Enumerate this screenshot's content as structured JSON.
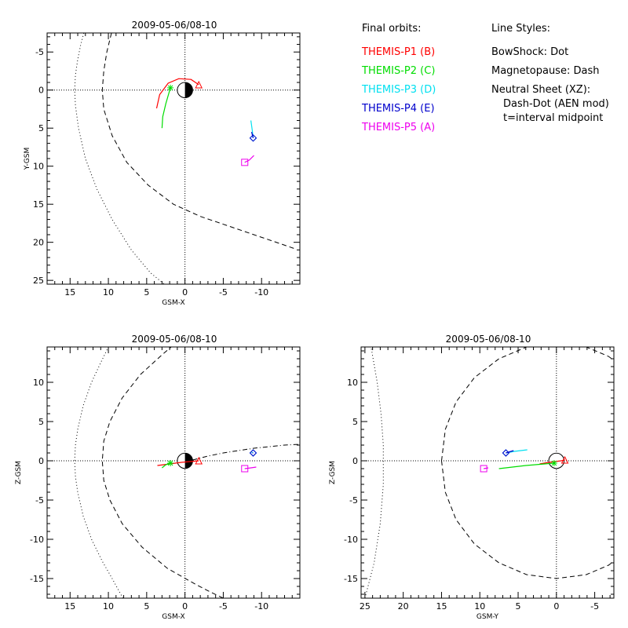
{
  "legend": {
    "orbits_title": "Final orbits:",
    "orbits": [
      {
        "label": "THEMIS-P1 (B)",
        "color": "#ff0000"
      },
      {
        "label": "THEMIS-P2 (C)",
        "color": "#00dd00"
      },
      {
        "label": "THEMIS-P3 (D)",
        "color": "#00e0f0"
      },
      {
        "label": "THEMIS-P4 (E)",
        "color": "#0000cc"
      },
      {
        "label": "THEMIS-P5 (A)",
        "color": "#ee00ee"
      }
    ],
    "styles_title": "Line Styles:",
    "styles": [
      "BowShock: Dot",
      "Magnetopause: Dash",
      "Neutral Sheet (XZ):",
      "Dash-Dot (AEN mod)",
      "t=interval midpoint"
    ]
  },
  "chart_data": [
    {
      "type": "line",
      "title": "2009-05-06/08-10",
      "xlabel": "GSM-X",
      "ylabel": "Y-GSM",
      "xlim": [
        18,
        -15
      ],
      "ylim": [
        25.5,
        -7.5
      ],
      "xticks": [
        15,
        10,
        5,
        0,
        -5,
        -10
      ],
      "xtick_labels": [
        "15",
        "10",
        "5",
        "0",
        "-5",
        "-10"
      ],
      "yticks": [
        -5,
        0,
        5,
        10,
        15,
        20,
        25
      ],
      "ytick_labels": [
        "-5",
        "0",
        "5",
        "10",
        "15",
        "20",
        "25"
      ],
      "earth": {
        "x": 0,
        "y": 0,
        "r": 1,
        "dark_side": "right"
      },
      "bowshock": [
        [
          14.4,
          0
        ],
        [
          14.3,
          -2
        ],
        [
          14.0,
          -4
        ],
        [
          13.6,
          -6
        ],
        [
          13.2,
          -7.5
        ],
        [
          14.3,
          2
        ],
        [
          13.9,
          5
        ],
        [
          13.0,
          9
        ],
        [
          11.5,
          13
        ],
        [
          9.5,
          17
        ],
        [
          7.0,
          21
        ],
        [
          4.5,
          24
        ],
        [
          2.7,
          25.5
        ]
      ],
      "magnetopause": [
        [
          10.8,
          0
        ],
        [
          10.6,
          -2.5
        ],
        [
          10.2,
          -5
        ],
        [
          9.6,
          -7.5
        ],
        [
          10.6,
          2.5
        ],
        [
          9.5,
          6
        ],
        [
          7.6,
          9.5
        ],
        [
          4.8,
          12.5
        ],
        [
          1.5,
          15
        ],
        [
          -2,
          16.6
        ],
        [
          -5.5,
          17.8
        ],
        [
          -9,
          19
        ],
        [
          -12.5,
          20.2
        ],
        [
          -14.5,
          20.9
        ]
      ],
      "series": [
        {
          "name": "THEMIS-P1 (B)",
          "color": "#ff0000",
          "points": [
            [
              3.7,
              2.4
            ],
            [
              3.3,
              0.6
            ],
            [
              2.2,
              -0.9
            ],
            [
              0.8,
              -1.5
            ],
            [
              -0.8,
              -1.4
            ],
            [
              -1.8,
              -0.7
            ]
          ],
          "marker": {
            "type": "triangle",
            "x": -1.8,
            "y": -0.7
          }
        },
        {
          "name": "THEMIS-P2 (C)",
          "color": "#00dd00",
          "points": [
            [
              3.0,
              5.0
            ],
            [
              2.9,
              3.5
            ],
            [
              2.5,
              1.8
            ],
            [
              1.9,
              -0.3
            ]
          ],
          "marker": {
            "type": "asterisk",
            "x": 1.9,
            "y": -0.3
          }
        },
        {
          "name": "THEMIS-P3 (D)",
          "color": "#00e0f0",
          "points": [
            [
              -8.6,
              4.0
            ],
            [
              -8.8,
              5.4
            ],
            [
              -8.9,
              6.3
            ]
          ],
          "marker": {
            "type": "diamond",
            "x": -8.9,
            "y": 6.3
          }
        },
        {
          "name": "THEMIS-P4 (E)",
          "color": "#0000cc",
          "points": [
            [
              -8.7,
              5.5
            ],
            [
              -8.9,
              6.3
            ]
          ],
          "marker": {
            "type": "diamond",
            "x": -8.9,
            "y": 6.3
          }
        },
        {
          "name": "THEMIS-P5 (A)",
          "color": "#ee00ee",
          "points": [
            [
              -7.8,
              9.5
            ],
            [
              -8.4,
              9.2
            ],
            [
              -9.0,
              8.6
            ]
          ],
          "marker": {
            "type": "square",
            "x": -7.8,
            "y": 9.5
          }
        }
      ]
    },
    {
      "type": "line",
      "title": "2009-05-06/08-10",
      "xlabel": "GSM-X",
      "ylabel": "Z-GSM",
      "xlim": [
        18,
        -15
      ],
      "ylim": [
        -17.5,
        14.5
      ],
      "xticks": [
        15,
        10,
        5,
        0,
        -5,
        -10
      ],
      "xtick_labels": [
        "15",
        "10",
        "5",
        "0",
        "-5",
        "-10"
      ],
      "yticks": [
        -15,
        -10,
        -5,
        0,
        5,
        10
      ],
      "ytick_labels": [
        "-15",
        "-10",
        "-5",
        "0",
        "5",
        "10"
      ],
      "earth": {
        "x": 0,
        "y": 0,
        "r": 1,
        "dark_side": "right"
      },
      "bowshock": [
        [
          14.4,
          0
        ],
        [
          14.3,
          2
        ],
        [
          14.0,
          4
        ],
        [
          13.3,
          7
        ],
        [
          12.2,
          10
        ],
        [
          11.0,
          12.5
        ],
        [
          10.0,
          14.5
        ],
        [
          14.3,
          -2
        ],
        [
          14.0,
          -4
        ],
        [
          13.3,
          -7
        ],
        [
          12.2,
          -10
        ],
        [
          10.8,
          -12.8
        ],
        [
          9.5,
          -15
        ],
        [
          8.1,
          -17.5
        ]
      ],
      "magnetopause": [
        [
          10.8,
          0
        ],
        [
          10.6,
          2.5
        ],
        [
          9.8,
          5
        ],
        [
          8.2,
          8
        ],
        [
          5.8,
          11
        ],
        [
          3.0,
          13.5
        ],
        [
          1.8,
          14.5
        ],
        [
          10.6,
          -2.5
        ],
        [
          9.8,
          -5
        ],
        [
          8.2,
          -8
        ],
        [
          5.6,
          -11
        ],
        [
          2.3,
          -13.7
        ],
        [
          -1.5,
          -15.8
        ],
        [
          -3.5,
          -16.8
        ],
        [
          -5,
          -17.5
        ]
      ],
      "neutral_sheet": [
        [
          -1.0,
          0.1
        ],
        [
          -3,
          0.6
        ],
        [
          -5,
          1.0
        ],
        [
          -7,
          1.3
        ],
        [
          -9,
          1.6
        ],
        [
          -11,
          1.8
        ],
        [
          -13,
          2.0
        ],
        [
          -15,
          2.1
        ]
      ],
      "series": [
        {
          "name": "THEMIS-P1 (B)",
          "color": "#ff0000",
          "points": [
            [
              3.6,
              -0.6
            ],
            [
              2.0,
              -0.4
            ],
            [
              0.5,
              -0.2
            ],
            [
              -1.8,
              0.0
            ]
          ],
          "marker": {
            "type": "triangle",
            "x": -1.8,
            "y": 0.0
          }
        },
        {
          "name": "THEMIS-P2 (C)",
          "color": "#00dd00",
          "points": [
            [
              3.0,
              -0.9
            ],
            [
              2.5,
              -0.5
            ],
            [
              1.9,
              -0.3
            ]
          ],
          "marker": {
            "type": "asterisk",
            "x": 1.9,
            "y": -0.3
          }
        },
        {
          "name": "THEMIS-P3 (D)",
          "color": "#00e0f0",
          "points": [
            [
              -8.7,
              1.1
            ],
            [
              -8.9,
              1.0
            ]
          ],
          "marker": {
            "type": "diamond",
            "x": -8.9,
            "y": 1.0
          }
        },
        {
          "name": "THEMIS-P4 (E)",
          "color": "#0000cc",
          "points": [
            [
              -8.8,
              1.0
            ],
            [
              -8.9,
              1.0
            ]
          ],
          "marker": {
            "type": "diamond",
            "x": -8.9,
            "y": 1.0
          }
        },
        {
          "name": "THEMIS-P5 (A)",
          "color": "#ee00ee",
          "points": [
            [
              -7.8,
              -1.0
            ],
            [
              -8.6,
              -0.9
            ],
            [
              -9.3,
              -0.8
            ]
          ],
          "marker": {
            "type": "square",
            "x": -7.8,
            "y": -1.0
          }
        }
      ]
    },
    {
      "type": "line",
      "title": "2009-05-06/08-10",
      "xlabel": "GSM-Y",
      "ylabel": "Z-GSM",
      "xlim": [
        25.5,
        -7.5
      ],
      "ylim": [
        -17.5,
        14.5
      ],
      "xticks": [
        25,
        20,
        15,
        10,
        5,
        0,
        -5
      ],
      "xtick_labels": [
        "25",
        "20",
        "15",
        "10",
        "5",
        "0",
        "-5"
      ],
      "yticks": [
        -15,
        -10,
        -5,
        0,
        5,
        10
      ],
      "ytick_labels": [
        "-15",
        "-10",
        "-5",
        "0",
        "5",
        "10"
      ],
      "earth": {
        "x": 0,
        "y": 0,
        "r": 1,
        "dark_side": "none"
      },
      "bowshock": [
        [
          25.0,
          -17.5
        ],
        [
          23.8,
          -13
        ],
        [
          23.0,
          -8
        ],
        [
          22.6,
          -3
        ],
        [
          22.6,
          2
        ],
        [
          22.9,
          6
        ],
        [
          23.4,
          10
        ],
        [
          24.2,
          14.5
        ]
      ],
      "magnetopause": [
        [
          15.0,
          0
        ],
        [
          14.5,
          4
        ],
        [
          13.1,
          7.5
        ],
        [
          10.7,
          10.6
        ],
        [
          7.5,
          13
        ],
        [
          3.9,
          14.5
        ],
        [
          0,
          15
        ],
        [
          -3.9,
          14.5
        ],
        [
          -6.8,
          13.3
        ],
        [
          -7.5,
          12.8
        ],
        [
          14.5,
          -4
        ],
        [
          13.1,
          -7.5
        ],
        [
          10.7,
          -10.6
        ],
        [
          7.5,
          -13
        ],
        [
          3.9,
          -14.5
        ],
        [
          0,
          -15
        ],
        [
          -3.9,
          -14.5
        ],
        [
          -6.8,
          -13.3
        ],
        [
          -7.5,
          -12.8
        ]
      ],
      "series": [
        {
          "name": "THEMIS-P1 (B)",
          "color": "#ff0000",
          "points": [
            [
              2.2,
              -0.4
            ],
            [
              1.0,
              -0.2
            ],
            [
              -0.6,
              0.0
            ],
            [
              -1.1,
              0.1
            ]
          ],
          "marker": {
            "type": "triangle",
            "x": -1.1,
            "y": 0.1
          }
        },
        {
          "name": "THEMIS-P2 (C)",
          "color": "#00dd00",
          "points": [
            [
              7.5,
              -1.0
            ],
            [
              4.0,
              -0.6
            ],
            [
              0.3,
              -0.3
            ]
          ],
          "marker": {
            "type": "asterisk",
            "x": 0.3,
            "y": -0.3
          }
        },
        {
          "name": "THEMIS-P3 (D)",
          "color": "#00e0f0",
          "points": [
            [
              3.8,
              1.4
            ],
            [
              5.5,
              1.2
            ],
            [
              6.6,
              1.0
            ]
          ],
          "marker": {
            "type": "diamond",
            "x": 6.6,
            "y": 1.0
          }
        },
        {
          "name": "THEMIS-P4 (E)",
          "color": "#0000cc",
          "points": [
            [
              5.6,
              1.3
            ],
            [
              6.6,
              1.0
            ]
          ],
          "marker": {
            "type": "diamond",
            "x": 6.6,
            "y": 1.0
          }
        },
        {
          "name": "THEMIS-P5 (A)",
          "color": "#ee00ee",
          "points": [
            [
              9.5,
              -1.0
            ],
            [
              8.9,
              -0.9
            ]
          ],
          "marker": {
            "type": "square",
            "x": 9.5,
            "y": -1.0
          }
        }
      ]
    }
  ]
}
